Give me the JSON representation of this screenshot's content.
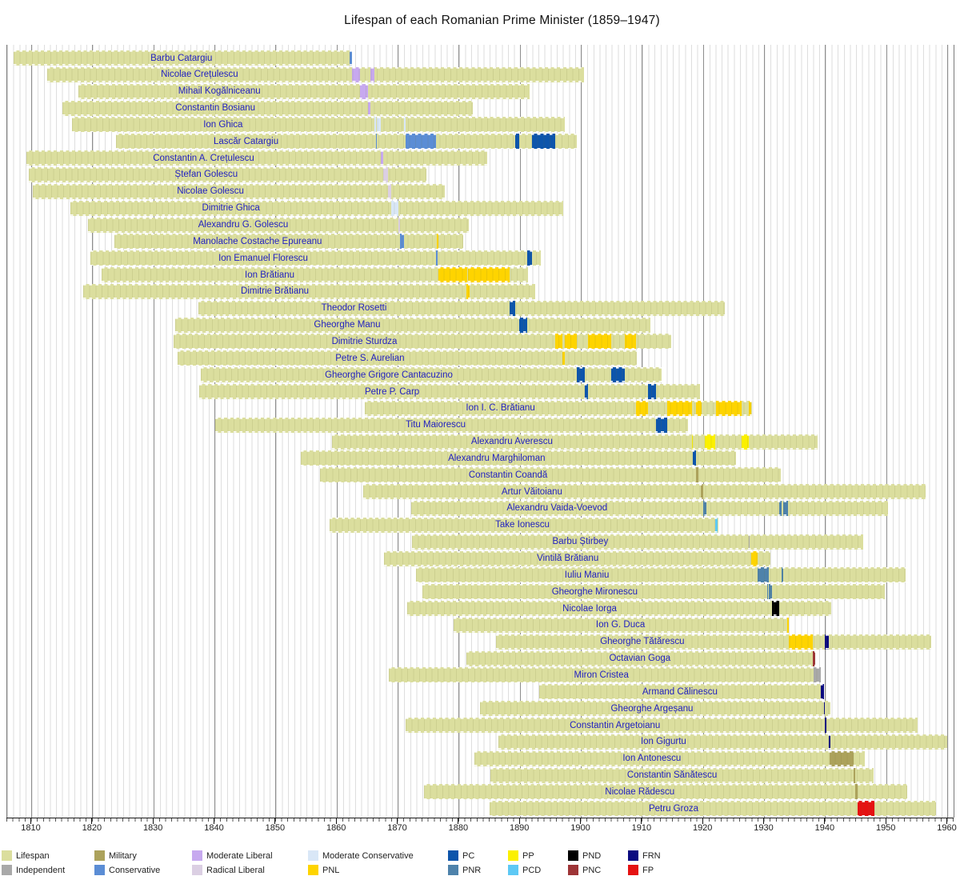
{
  "chart_data": {
    "type": "timeline",
    "title": "Lifespan of each Romanian Prime Minister (1859–1947)",
    "xlim": [
      1806,
      1961
    ],
    "xticks": [
      1810,
      1820,
      1830,
      1840,
      1850,
      1860,
      1870,
      1880,
      1890,
      1900,
      1910,
      1920,
      1930,
      1940,
      1950,
      1960
    ],
    "grid": "yearly-light, decade-dark",
    "rows": [
      {
        "name": "Barbu Catargiu",
        "birth": 1807.0,
        "death": 1862.45,
        "terms": [
          {
            "from": 1862.06,
            "to": 1862.45,
            "party": "conservative"
          }
        ]
      },
      {
        "name": "Nicolae Crețulescu",
        "birth": 1812.5,
        "death": 1900.5,
        "terms": [
          {
            "from": 1862.48,
            "to": 1863.78,
            "party": "moderate_liberal"
          },
          {
            "from": 1865.45,
            "to": 1866.1,
            "party": "moderate_liberal"
          }
        ]
      },
      {
        "name": "Mihail Kogălniceanu",
        "birth": 1817.7,
        "death": 1891.5,
        "terms": [
          {
            "from": 1863.78,
            "to": 1865.07,
            "party": "moderate_liberal"
          }
        ]
      },
      {
        "name": "Constantin Bosianu",
        "birth": 1815.1,
        "death": 1882.2,
        "terms": [
          {
            "from": 1865.07,
            "to": 1865.45,
            "party": "moderate_liberal"
          }
        ]
      },
      {
        "name": "Ion Ghica",
        "birth": 1816.6,
        "death": 1897.3,
        "terms": [
          {
            "from": 1866.1,
            "to": 1866.37,
            "party": "moderate_conservative"
          },
          {
            "from": 1866.54,
            "to": 1867.2,
            "party": "moderate_conservative"
          },
          {
            "from": 1870.96,
            "to": 1871.2,
            "party": "moderate_conservative"
          }
        ]
      },
      {
        "name": "Lascăr Catargiu",
        "birth": 1823.85,
        "death": 1899.25,
        "terms": [
          {
            "from": 1866.37,
            "to": 1866.54,
            "party": "conservative"
          },
          {
            "from": 1871.2,
            "to": 1876.27,
            "party": "conservative"
          },
          {
            "from": 1889.24,
            "to": 1889.85,
            "party": "pc"
          },
          {
            "from": 1891.9,
            "to": 1895.78,
            "party": "pc"
          }
        ]
      },
      {
        "name": "Constantin A. Crețulescu",
        "birth": 1809.15,
        "death": 1884.55,
        "terms": [
          {
            "from": 1867.17,
            "to": 1867.6,
            "party": "moderate_liberal"
          }
        ]
      },
      {
        "name": "Ștefan Golescu",
        "birth": 1809.6,
        "death": 1874.6,
        "terms": [
          {
            "from": 1867.6,
            "to": 1868.37,
            "party": "radical_liberal"
          }
        ]
      },
      {
        "name": "Nicolae Golescu",
        "birth": 1810.2,
        "death": 1877.6,
        "terms": [
          {
            "from": 1868.37,
            "to": 1868.87,
            "party": "radical_liberal"
          }
        ]
      },
      {
        "name": "Dimitrie Ghica",
        "birth": 1816.4,
        "death": 1897.1,
        "terms": [
          {
            "from": 1868.87,
            "to": 1870.1,
            "party": "moderate_conservative"
          }
        ]
      },
      {
        "name": "Alexandru G. Golescu",
        "birth": 1819.2,
        "death": 1881.6,
        "terms": [
          {
            "from": 1870.1,
            "to": 1870.37,
            "party": "radical_liberal"
          }
        ]
      },
      {
        "name": "Manolache Costache Epureanu",
        "birth": 1823.6,
        "death": 1880.7,
        "terms": [
          {
            "from": 1870.37,
            "to": 1870.96,
            "party": "conservative"
          },
          {
            "from": 1876.33,
            "to": 1876.55,
            "party": "pnl"
          }
        ]
      },
      {
        "name": "Ion Emanuel Florescu",
        "birth": 1819.6,
        "death": 1893.35,
        "terms": [
          {
            "from": 1876.25,
            "to": 1876.45,
            "party": "conservative"
          },
          {
            "from": 1891.1,
            "to": 1891.9,
            "party": "pc"
          }
        ]
      },
      {
        "name": "Ion Brătianu",
        "birth": 1821.4,
        "death": 1891.35,
        "terms": [
          {
            "from": 1876.55,
            "to": 1881.28,
            "party": "pnl"
          },
          {
            "from": 1881.45,
            "to": 1888.23,
            "party": "pnl"
          }
        ]
      },
      {
        "name": "Dimitrie Brătianu",
        "birth": 1818.4,
        "death": 1892.45,
        "terms": [
          {
            "from": 1881.25,
            "to": 1881.7,
            "party": "pnl"
          }
        ]
      },
      {
        "name": "Theodor Rosetti",
        "birth": 1837.35,
        "death": 1923.55,
        "terms": [
          {
            "from": 1888.23,
            "to": 1889.24,
            "party": "pc"
          }
        ]
      },
      {
        "name": "Gheorghe Manu",
        "birth": 1833.5,
        "death": 1911.35,
        "terms": [
          {
            "from": 1889.85,
            "to": 1891.1,
            "party": "pc"
          }
        ]
      },
      {
        "name": "Dimitrie Sturdza",
        "birth": 1833.2,
        "death": 1914.75,
        "terms": [
          {
            "from": 1895.78,
            "to": 1896.9,
            "party": "pnl"
          },
          {
            "from": 1897.25,
            "to": 1899.28,
            "party": "pnl"
          },
          {
            "from": 1901.1,
            "to": 1904.95,
            "party": "pnl"
          },
          {
            "from": 1907.2,
            "to": 1908.95,
            "party": "pnl"
          }
        ]
      },
      {
        "name": "Petre S. Aurelian",
        "birth": 1833.9,
        "death": 1909.05,
        "terms": [
          {
            "from": 1896.9,
            "to": 1897.25,
            "party": "pnl"
          }
        ]
      },
      {
        "name": "Gheorghe Grigore Cantacuzino",
        "birth": 1837.7,
        "death": 1913.2,
        "terms": [
          {
            "from": 1899.28,
            "to": 1900.55,
            "party": "pc"
          },
          {
            "from": 1904.95,
            "to": 1907.2,
            "party": "pc"
          }
        ]
      },
      {
        "name": "Petre P. Carp",
        "birth": 1837.5,
        "death": 1919.45,
        "terms": [
          {
            "from": 1900.55,
            "to": 1901.1,
            "party": "pc"
          },
          {
            "from": 1910.95,
            "to": 1912.23,
            "party": "pc"
          }
        ]
      },
      {
        "name": "Ion I. C. Brătianu",
        "birth": 1864.6,
        "death": 1927.9,
        "terms": [
          {
            "from": 1908.95,
            "to": 1910.95,
            "party": "pnl"
          },
          {
            "from": 1914.05,
            "to": 1918.1,
            "party": "pnl"
          },
          {
            "from": 1918.85,
            "to": 1919.7,
            "party": "pnl"
          },
          {
            "from": 1922.05,
            "to": 1926.25,
            "party": "pnl"
          },
          {
            "from": 1927.45,
            "to": 1927.9,
            "party": "pnl"
          }
        ]
      },
      {
        "name": "Titu Maiorescu",
        "birth": 1840.1,
        "death": 1917.5,
        "terms": [
          {
            "from": 1912.23,
            "to": 1914.05,
            "party": "pc"
          }
        ]
      },
      {
        "name": "Alexandru Averescu",
        "birth": 1859.2,
        "death": 1938.75,
        "terms": [
          {
            "from": 1918.1,
            "to": 1918.25,
            "party": "pp"
          },
          {
            "from": 1920.2,
            "to": 1921.95,
            "party": "pp"
          },
          {
            "from": 1926.25,
            "to": 1927.45,
            "party": "pp"
          }
        ]
      },
      {
        "name": "Alexandru Marghiloman",
        "birth": 1854.05,
        "death": 1925.35,
        "terms": [
          {
            "from": 1918.25,
            "to": 1918.85,
            "party": "pc"
          }
        ]
      },
      {
        "name": "Constantin Coandă",
        "birth": 1857.2,
        "death": 1932.7,
        "terms": [
          {
            "from": 1918.85,
            "to": 1919.15,
            "party": "military"
          }
        ]
      },
      {
        "name": "Artur Văitoianu",
        "birth": 1864.3,
        "death": 1956.45,
        "terms": [
          {
            "from": 1919.55,
            "to": 1919.92,
            "party": "military"
          }
        ]
      },
      {
        "name": "Alexandru Vaida-Voevod",
        "birth": 1872.15,
        "death": 1950.2,
        "terms": [
          {
            "from": 1919.92,
            "to": 1920.45,
            "party": "pnr"
          },
          {
            "from": 1932.45,
            "to": 1932.85,
            "party": "pnr"
          },
          {
            "from": 1933.05,
            "to": 1933.9,
            "party": "pnr"
          }
        ]
      },
      {
        "name": "Take Ionescu",
        "birth": 1858.8,
        "death": 1922.45,
        "terms": [
          {
            "from": 1921.95,
            "to": 1922.4,
            "party": "pcd"
          }
        ]
      },
      {
        "name": "Barbu Știrbey",
        "birth": 1872.3,
        "death": 1946.2,
        "terms": [
          {
            "from": 1927.4,
            "to": 1927.6,
            "party": "independent"
          }
        ]
      },
      {
        "name": "Vintilă Brătianu",
        "birth": 1867.7,
        "death": 1930.95,
        "terms": [
          {
            "from": 1927.9,
            "to": 1928.85,
            "party": "pnl"
          }
        ]
      },
      {
        "name": "Iuliu Maniu",
        "birth": 1873.0,
        "death": 1953.1,
        "terms": [
          {
            "from": 1928.85,
            "to": 1930.42,
            "party": "pnr"
          },
          {
            "from": 1930.5,
            "to": 1930.78,
            "party": "pnr"
          },
          {
            "from": 1932.78,
            "to": 1933.05,
            "party": "pnr"
          }
        ]
      },
      {
        "name": "Gheorghe Mironescu",
        "birth": 1874.0,
        "death": 1949.75,
        "terms": [
          {
            "from": 1930.42,
            "to": 1930.5,
            "party": "pnr"
          },
          {
            "from": 1930.78,
            "to": 1931.3,
            "party": "pnr"
          }
        ]
      },
      {
        "name": "Nicolae Iorga",
        "birth": 1871.45,
        "death": 1940.9,
        "terms": [
          {
            "from": 1931.3,
            "to": 1932.45,
            "party": "pnd"
          }
        ]
      },
      {
        "name": "Ion G. Duca",
        "birth": 1879.15,
        "death": 1934.0,
        "terms": [
          {
            "from": 1933.7,
            "to": 1934.0,
            "party": "pnl"
          }
        ]
      },
      {
        "name": "Gheorghe Tătărescu",
        "birth": 1886.0,
        "death": 1957.25,
        "terms": [
          {
            "from": 1934.0,
            "to": 1937.95,
            "party": "pnl"
          },
          {
            "from": 1939.9,
            "to": 1940.5,
            "party": "frn"
          }
        ]
      },
      {
        "name": "Octavian Goga",
        "birth": 1881.25,
        "death": 1938.35,
        "terms": [
          {
            "from": 1937.95,
            "to": 1938.3,
            "party": "pnc"
          }
        ]
      },
      {
        "name": "Miron Cristea",
        "birth": 1868.5,
        "death": 1939.17,
        "terms": [
          {
            "from": 1938.1,
            "to": 1939.17,
            "party": "independent"
          }
        ]
      },
      {
        "name": "Armand Călinescu",
        "birth": 1893.15,
        "death": 1939.72,
        "terms": [
          {
            "from": 1939.17,
            "to": 1939.72,
            "party": "frn"
          }
        ]
      },
      {
        "name": "Gheorghe Argeșanu",
        "birth": 1883.45,
        "death": 1940.85,
        "terms": [
          {
            "from": 1939.72,
            "to": 1939.85,
            "party": "frn"
          }
        ]
      },
      {
        "name": "Constantin Argetoianu",
        "birth": 1871.2,
        "death": 1955.05,
        "terms": [
          {
            "from": 1939.85,
            "to": 1940.1,
            "party": "frn"
          }
        ]
      },
      {
        "name": "Ion Gigurtu",
        "birth": 1886.45,
        "death": 1959.9,
        "terms": [
          {
            "from": 1940.5,
            "to": 1940.85,
            "party": "frn"
          }
        ]
      },
      {
        "name": "Ion Antonescu",
        "birth": 1882.45,
        "death": 1946.4,
        "terms": [
          {
            "from": 1940.68,
            "to": 1944.65,
            "party": "military"
          }
        ]
      },
      {
        "name": "Constantin Sănătescu",
        "birth": 1885.1,
        "death": 1947.85,
        "terms": [
          {
            "from": 1944.65,
            "to": 1944.93,
            "party": "military"
          }
        ]
      },
      {
        "name": "Nicolae Rădescu",
        "birth": 1874.25,
        "death": 1953.4,
        "terms": [
          {
            "from": 1944.93,
            "to": 1945.2,
            "party": "military"
          }
        ]
      },
      {
        "name": "Petru Groza",
        "birth": 1884.95,
        "death": 1958.05,
        "terms": [
          {
            "from": 1945.3,
            "to": 1947.95,
            "party": "fp"
          }
        ]
      }
    ]
  },
  "parties": {
    "lifespan": {
      "label": "Lifespan",
      "color": "#dbde9e"
    },
    "independent": {
      "label": "Independent",
      "color": "#a9a9a9"
    },
    "military": {
      "label": "Military",
      "color": "#aca25c"
    },
    "conservative": {
      "label": "Conservative",
      "color": "#5b8dd5"
    },
    "moderate_liberal": {
      "label": "Moderate Liberal",
      "color": "#c7a9ef"
    },
    "radical_liberal": {
      "label": "Radical Liberal",
      "color": "#dbcfe3"
    },
    "moderate_conservative": {
      "label": "Moderate Conservative",
      "color": "#d9e7f7"
    },
    "pnl": {
      "label": "PNL",
      "color": "#fed400"
    },
    "pc": {
      "label": "PC",
      "color": "#0d55ab"
    },
    "pnr": {
      "label": "PNR",
      "color": "#4e82ab"
    },
    "pp": {
      "label": "PP",
      "color": "#fbf000"
    },
    "pcd": {
      "label": "PCD",
      "color": "#5ec9f5"
    },
    "pnd": {
      "label": "PND",
      "color": "#000000"
    },
    "pnc": {
      "label": "PNC",
      "color": "#9e3537"
    },
    "frn": {
      "label": "FRN",
      "color": "#0a0a80"
    },
    "fp": {
      "label": "FP",
      "color": "#e51212"
    }
  },
  "legend": {
    "columns": [
      [
        "lifespan",
        "independent"
      ],
      [
        "military",
        "conservative"
      ],
      [
        "moderate_liberal",
        "radical_liberal"
      ],
      [
        "moderate_conservative",
        "pnl"
      ],
      [
        "pc",
        "pnr"
      ],
      [
        "pp",
        "pcd"
      ],
      [
        "pnd",
        "pnc"
      ],
      [
        "frn",
        "fp"
      ]
    ]
  }
}
